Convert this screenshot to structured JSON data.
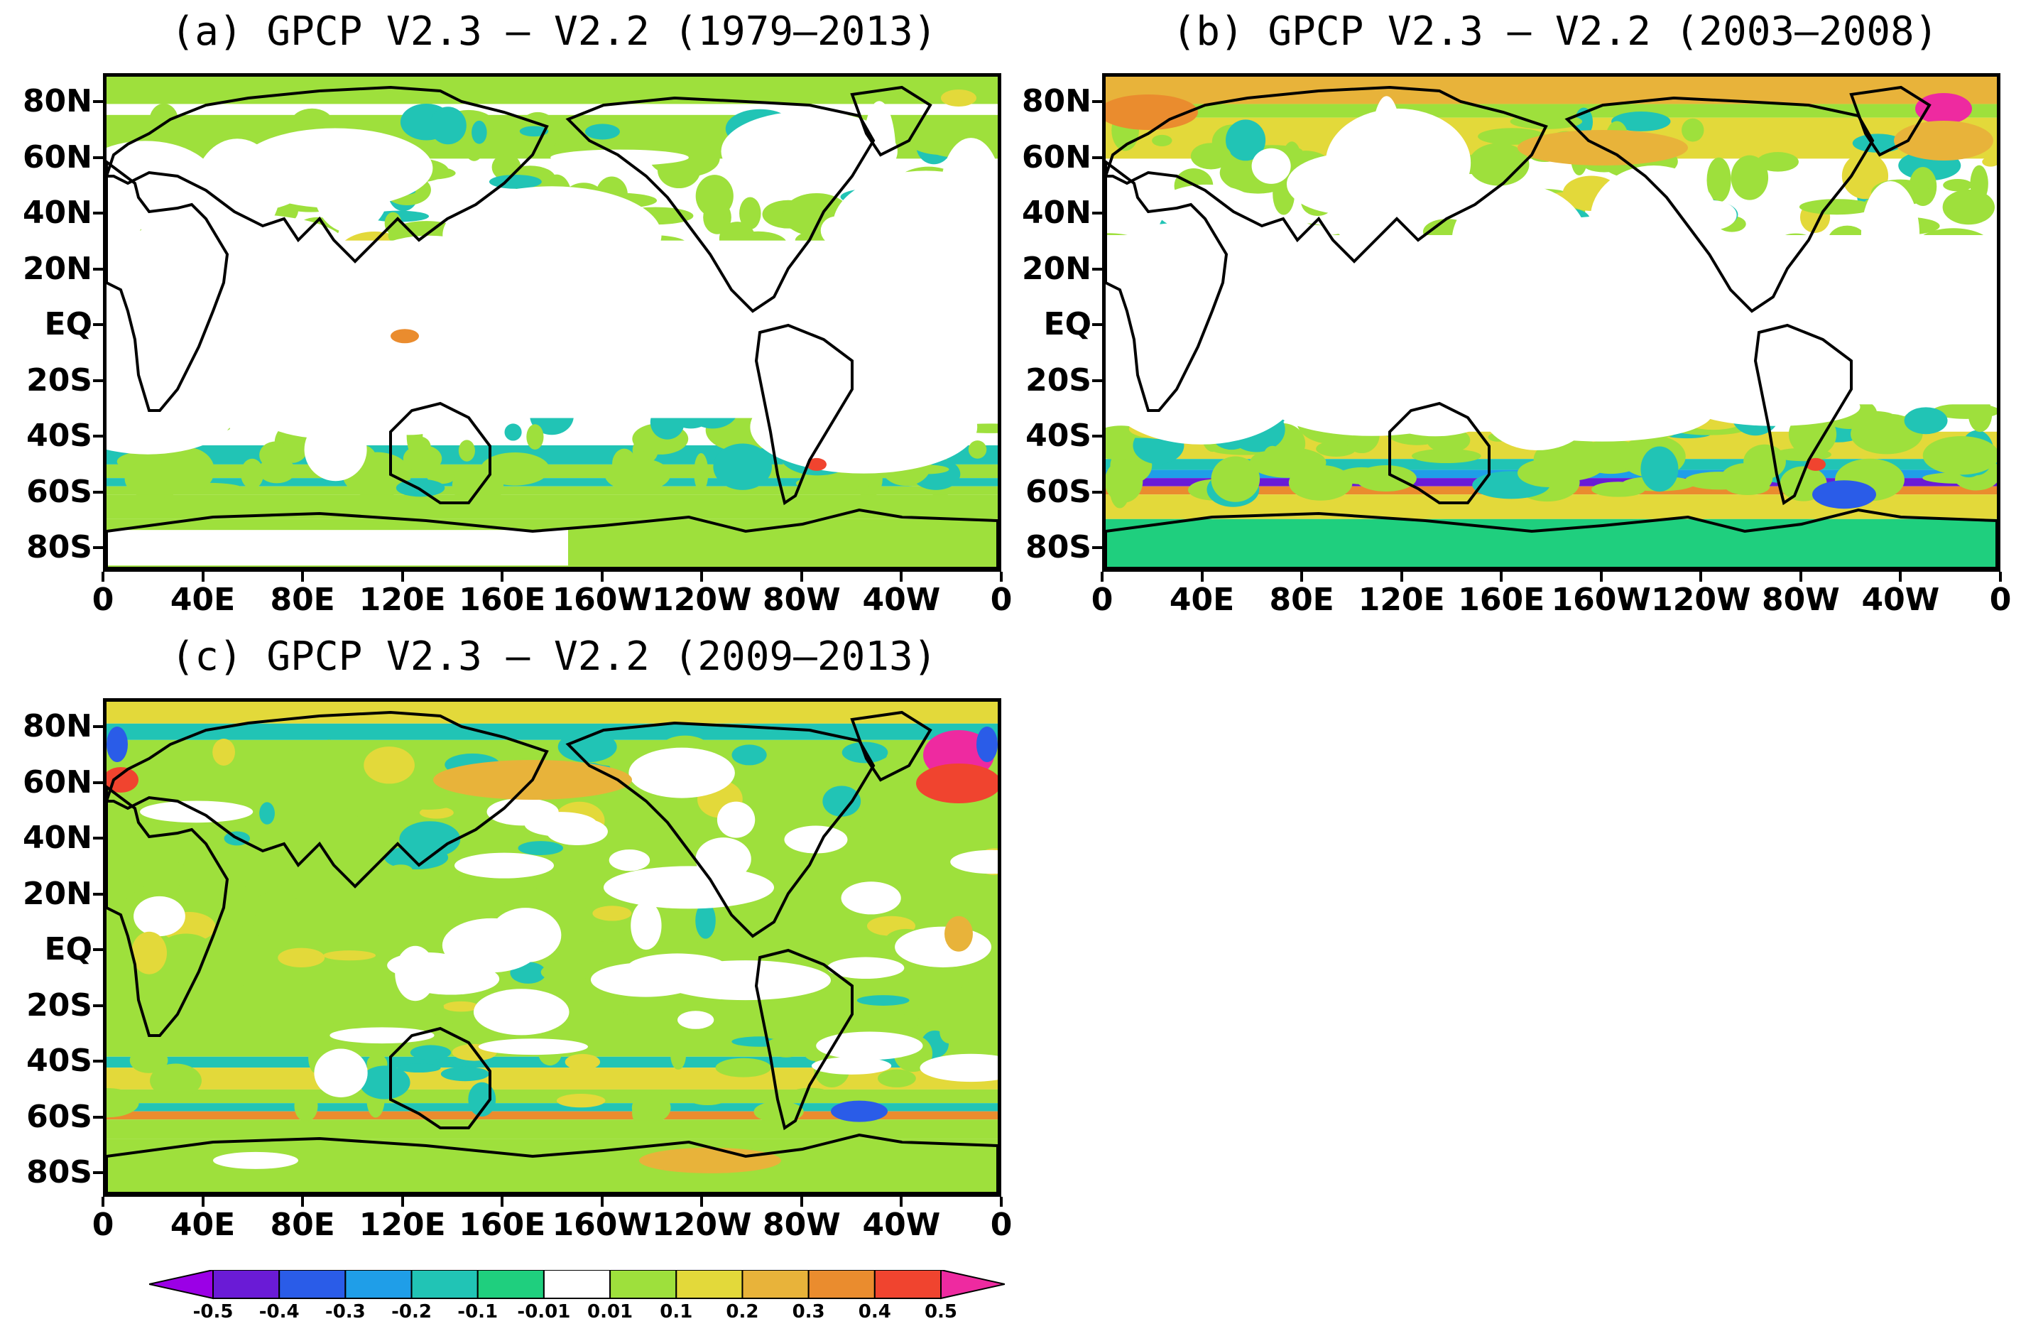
{
  "panels": [
    {
      "id": "a",
      "title": "(a) GPCP V2.3 – V2.2 (1979–2013)"
    },
    {
      "id": "b",
      "title": "(b) GPCP V2.3 – V2.2 (2003–2008)"
    },
    {
      "id": "c",
      "title": "(c) GPCP V2.3 – V2.2 (2009–2013)"
    }
  ],
  "lat_labels": [
    "80N",
    "60N",
    "40N",
    "20N",
    "EQ",
    "20S",
    "40S",
    "60S",
    "80S"
  ],
  "lon_labels": [
    "0",
    "40E",
    "80E",
    "120E",
    "160E",
    "160W",
    "120W",
    "80W",
    "40W",
    "0"
  ],
  "colorbar": {
    "labels": [
      "-0.5",
      "-0.4",
      "-0.3",
      "-0.2",
      "-0.1",
      "-0.01",
      "0.01",
      "0.1",
      "0.2",
      "0.3",
      "0.4",
      "0.5"
    ],
    "colors": [
      "#9b00e6",
      "#6a1bd6",
      "#2a5ce8",
      "#1f9ee8",
      "#21c4b5",
      "#1fcf7e",
      "#ffffff",
      "#9ee03c",
      "#e3d93a",
      "#e8b33a",
      "#ea8c2e",
      "#f0442f",
      "#ee2aa0"
    ]
  },
  "palette": {
    "white": "#ffffff",
    "green": "#9ee03c",
    "teal": "#21c4b5",
    "mint": "#1fcf7e",
    "yellow": "#e3d93a",
    "orange": "#e8b33a",
    "deep_orange": "#ea8c2e",
    "red": "#f0442f",
    "magenta": "#ee2aa0",
    "blue": "#2a5ce8",
    "purple": "#6a1bd6",
    "sky": "#1f9ee8"
  }
}
